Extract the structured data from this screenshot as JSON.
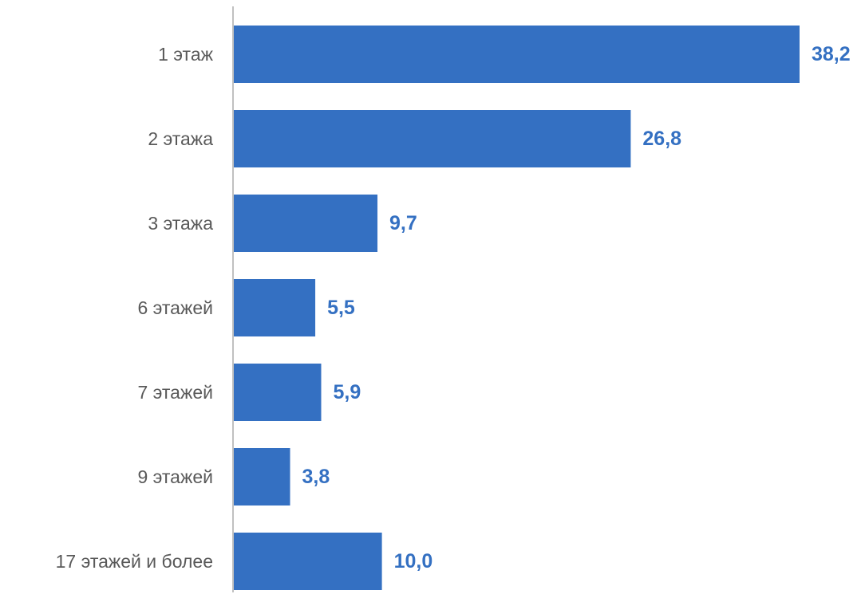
{
  "chart_data": {
    "type": "bar",
    "orientation": "horizontal",
    "title": "",
    "xlabel": "",
    "ylabel": "",
    "categories": [
      "1 этаж",
      "2 этажа",
      "3 этажа",
      "6 этажей",
      "7 этажей",
      "9 этажей",
      "17 этажей и более"
    ],
    "values": [
      38.2,
      26.8,
      9.7,
      5.5,
      5.9,
      3.8,
      10.0
    ],
    "value_labels": [
      "38,2",
      "26,8",
      "9,7",
      "5,5",
      "5,9",
      "3,8",
      "10,0"
    ],
    "xlim": [
      0,
      38.2
    ],
    "grid": false,
    "legend": "none",
    "colors": {
      "bar": "#3470C2",
      "value_label": "#3470C2",
      "category_label": "#595959",
      "axis": "#808080"
    }
  }
}
